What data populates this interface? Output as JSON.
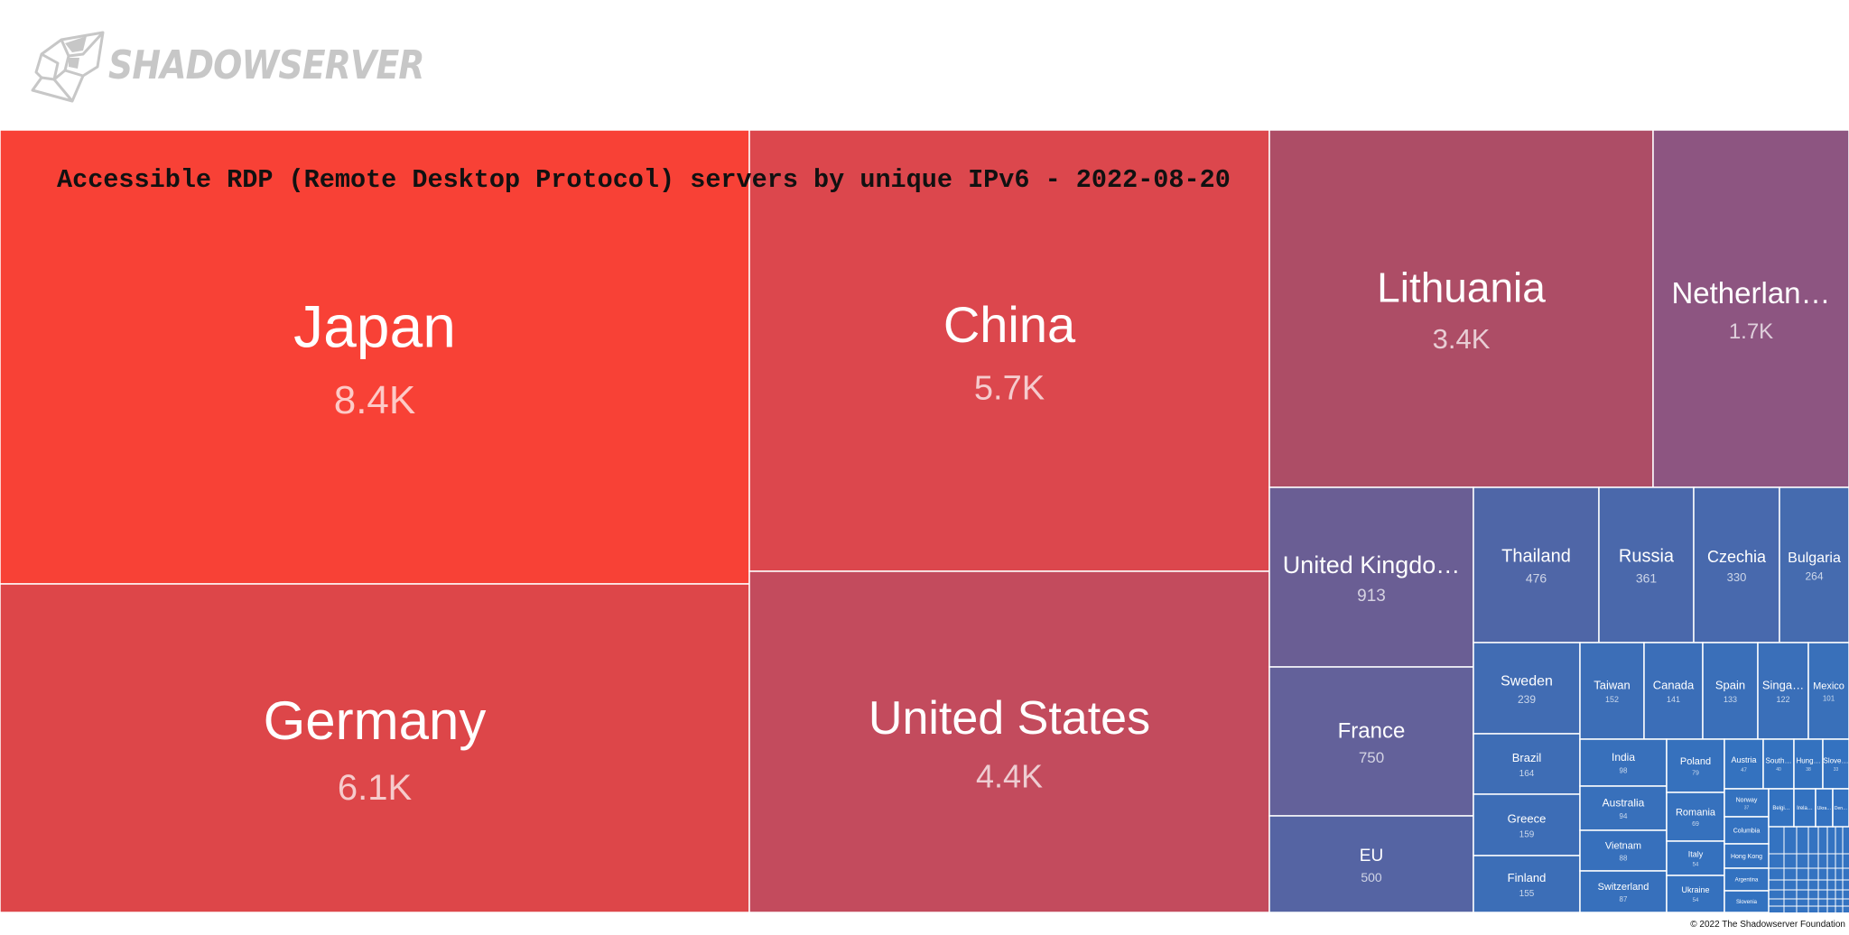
{
  "header": {
    "logo_text": "SHADOWSERVER"
  },
  "footer": {
    "copyright": "© 2022 The Shadowserver Foundation"
  },
  "chart_data": {
    "type": "treemap",
    "title": "Accessible RDP (Remote Desktop Protocol) servers by unique IPv6 - 2022-08-20",
    "items": [
      {
        "name": "Japan",
        "label": "8.4K",
        "value": 8400,
        "color": "#f84136"
      },
      {
        "name": "Germany",
        "label": "6.1K",
        "value": 6100,
        "color": "#dd4649"
      },
      {
        "name": "China",
        "label": "5.7K",
        "value": 5700,
        "color": "#dc474d"
      },
      {
        "name": "United States",
        "label": "4.4K",
        "value": 4400,
        "color": "#c34b5d"
      },
      {
        "name": "Lithuania",
        "label": "3.4K",
        "value": 3400,
        "color": "#ad4d66"
      },
      {
        "name": "Netherlan…",
        "label": "1.7K",
        "value": 1700,
        "color": "#8d5581"
      },
      {
        "name": "United Kingdo…",
        "label": "913",
        "value": 913,
        "color": "#6a5e94"
      },
      {
        "name": "France",
        "label": "750",
        "value": 750,
        "color": "#63619a"
      },
      {
        "name": "EU",
        "label": "500",
        "value": 500,
        "color": "#5564a3"
      },
      {
        "name": "Thailand",
        "label": "476",
        "value": 476,
        "color": "#4f66a7"
      },
      {
        "name": "Russia",
        "label": "361",
        "value": 361,
        "color": "#4a68ab"
      },
      {
        "name": "Czechia",
        "label": "330",
        "value": 330,
        "color": "#4869ad"
      },
      {
        "name": "Bulgaria",
        "label": "264",
        "value": 264,
        "color": "#456baf"
      },
      {
        "name": "Sweden",
        "label": "239",
        "value": 239,
        "color": "#416cb3"
      },
      {
        "name": "Brazil",
        "label": "164",
        "value": 164,
        "color": "#3e6db5"
      },
      {
        "name": "Greece",
        "label": "159",
        "value": 159,
        "color": "#3d6db6"
      },
      {
        "name": "Finland",
        "label": "155",
        "value": 155,
        "color": "#3c6eb7"
      },
      {
        "name": "Taiwan",
        "label": "152",
        "value": 152,
        "color": "#3c6eb7"
      },
      {
        "name": "Canada",
        "label": "141",
        "value": 141,
        "color": "#3b6eb8"
      },
      {
        "name": "Spain",
        "label": "133",
        "value": 133,
        "color": "#3a6fb9"
      },
      {
        "name": "Singa…",
        "label": "122",
        "value": 122,
        "color": "#3a6fb9"
      },
      {
        "name": "Mexico",
        "label": "101",
        "value": 101,
        "color": "#3970ba"
      },
      {
        "name": "India",
        "label": "98",
        "value": 98,
        "color": "#3870bb"
      },
      {
        "name": "Australia",
        "label": "94",
        "value": 94,
        "color": "#3870bb"
      },
      {
        "name": "Vietnam",
        "label": "88",
        "value": 88,
        "color": "#3770bc"
      },
      {
        "name": "Switzerland",
        "label": "87",
        "value": 87,
        "color": "#3770bc"
      },
      {
        "name": "Poland",
        "label": "79",
        "value": 79,
        "color": "#3671bd"
      },
      {
        "name": "Romania",
        "label": "69",
        "value": 69,
        "color": "#3671bd"
      },
      {
        "name": "Italy",
        "label": "54",
        "value": 54,
        "color": "#3571be"
      },
      {
        "name": "Ukraine",
        "label": "54",
        "value": 54,
        "color": "#3571be"
      },
      {
        "name": "Austria",
        "label": "47",
        "value": 47,
        "color": "#3472bf"
      },
      {
        "name": "South…",
        "label": "40",
        "value": 40,
        "color": "#3472bf"
      },
      {
        "name": "Hung…",
        "label": "38",
        "value": 38,
        "color": "#3472bf"
      },
      {
        "name": "Slove…",
        "label": "33",
        "value": 33,
        "color": "#3472c0"
      },
      {
        "name": "Norway",
        "label": "37",
        "value": 37,
        "color": "#3472bf"
      },
      {
        "name": "Columbia",
        "label": "",
        "value": 33,
        "color": "#3472c0"
      },
      {
        "name": "Hong Kong",
        "label": "",
        "value": 30,
        "color": "#3472c0"
      },
      {
        "name": "Argentina",
        "label": "",
        "value": 28,
        "color": "#3372c0"
      },
      {
        "name": "Slovenia",
        "label": "",
        "value": 26,
        "color": "#3372c0"
      },
      {
        "name": "Belgi…",
        "label": "",
        "value": 25,
        "color": "#3372c0"
      },
      {
        "name": "Irela…",
        "label": "",
        "value": 24,
        "color": "#3372c0"
      },
      {
        "name": "Ukra…",
        "label": "",
        "value": 22,
        "color": "#3372c1"
      },
      {
        "name": "Den…",
        "label": "",
        "value": 20,
        "color": "#3372c1"
      }
    ]
  }
}
